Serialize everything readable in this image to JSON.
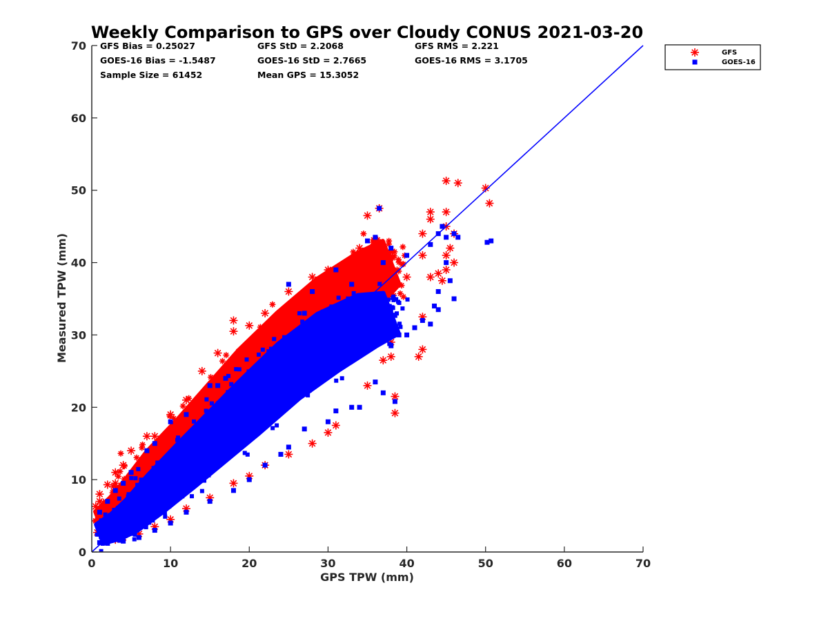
{
  "chart_data": {
    "type": "scatter",
    "title": "Weekly Comparison to GPS over Cloudy CONUS 2021-03-20",
    "xlabel": "GPS TPW (mm)",
    "ylabel": "Measured TPW (mm)",
    "xlim": [
      0,
      70
    ],
    "ylim": [
      0,
      70
    ],
    "xticks": [
      "0",
      "10",
      "20",
      "30",
      "40",
      "50",
      "60",
      "70"
    ],
    "yticks": [
      "0",
      "10",
      "20",
      "30",
      "40",
      "50",
      "60",
      "70"
    ],
    "grid": false,
    "legend_position": "outside top-right",
    "stats": [
      [
        "GFS Bias = 0.25027",
        "GFS StD = 2.2068",
        "GFS RMS = 2.221"
      ],
      [
        "GOES-16 Bias = -1.5487",
        "GOES-16 StD = 2.7665",
        "GOES-16 RMS = 3.1705"
      ],
      [
        "Sample Size = 61452",
        "Mean GPS = 15.3052",
        ""
      ]
    ],
    "reference_line": {
      "type": "one-to-one",
      "color": "#0000ff",
      "x": [
        0,
        70
      ],
      "y": [
        0,
        70
      ]
    },
    "series": [
      {
        "name": "GFS",
        "marker": "asterisk",
        "color": "#ff0000",
        "core": [
          [
            1,
            4
          ],
          [
            3,
            5.5
          ],
          [
            5,
            7.5
          ],
          [
            8,
            11
          ],
          [
            12,
            15
          ],
          [
            16,
            19.5
          ],
          [
            20,
            24
          ],
          [
            25,
            29
          ],
          [
            30,
            33.5
          ],
          [
            35,
            37.5
          ],
          [
            38,
            40
          ]
        ],
        "core_spread": [
          1.6,
          2,
          2.4,
          2.9,
          3.3,
          3.6,
          3.9,
          4.1,
          4.2,
          3.8,
          3.0
        ],
        "points": [
          [
            45,
            51.3
          ],
          [
            46.5,
            51
          ],
          [
            50,
            50.3
          ],
          [
            50.5,
            48.2
          ],
          [
            36.5,
            47.5
          ],
          [
            35,
            46.5
          ],
          [
            43,
            47
          ],
          [
            45,
            47
          ],
          [
            43,
            46
          ],
          [
            42,
            44
          ],
          [
            45,
            45
          ],
          [
            46,
            44
          ],
          [
            45.5,
            42
          ],
          [
            46,
            40
          ],
          [
            45,
            41
          ],
          [
            45,
            39
          ],
          [
            42,
            41
          ],
          [
            43,
            38
          ],
          [
            44,
            38.5
          ],
          [
            44.5,
            37.5
          ],
          [
            40,
            38
          ],
          [
            38,
            39
          ],
          [
            36,
            43
          ],
          [
            34,
            42
          ],
          [
            34,
            40
          ],
          [
            30,
            39
          ],
          [
            28,
            38
          ],
          [
            25,
            36
          ],
          [
            22,
            33
          ],
          [
            20,
            31.3
          ],
          [
            18,
            32
          ],
          [
            18,
            30.5
          ],
          [
            16,
            27.5
          ],
          [
            14,
            25
          ],
          [
            15,
            22
          ],
          [
            14,
            21
          ],
          [
            12,
            21
          ],
          [
            10,
            19
          ],
          [
            8,
            16
          ],
          [
            7,
            16
          ],
          [
            5,
            14
          ],
          [
            4,
            12
          ],
          [
            3,
            11
          ],
          [
            3,
            9.5
          ],
          [
            2,
            9.3
          ],
          [
            1,
            8
          ],
          [
            1,
            7
          ],
          [
            0.5,
            6.3
          ],
          [
            1.5,
            6.8
          ],
          [
            2,
            6.5
          ],
          [
            38.5,
            21.5
          ],
          [
            38.5,
            19.2
          ],
          [
            42,
            32.5
          ],
          [
            42,
            28
          ],
          [
            41.5,
            27
          ],
          [
            38,
            29
          ],
          [
            38,
            27
          ],
          [
            37,
            26.5
          ],
          [
            35,
            23
          ],
          [
            31,
            17.5
          ],
          [
            30,
            16.5
          ],
          [
            28,
            15
          ],
          [
            25,
            13.5
          ],
          [
            22,
            12
          ],
          [
            20,
            10.5
          ],
          [
            18,
            9.5
          ],
          [
            15,
            7.5
          ],
          [
            12,
            6
          ],
          [
            10,
            4.5
          ],
          [
            8,
            3.5
          ],
          [
            6,
            2.5
          ],
          [
            4,
            2
          ],
          [
            3,
            1.7
          ],
          [
            2,
            2.5
          ],
          [
            0.7,
            2.7
          ]
        ]
      },
      {
        "name": "GOES-16",
        "marker": "square",
        "color": "#0000ff",
        "core": [
          [
            1,
            2.5
          ],
          [
            3,
            3.5
          ],
          [
            5,
            5
          ],
          [
            8,
            8
          ],
          [
            12,
            12
          ],
          [
            16,
            16
          ],
          [
            20,
            20
          ],
          [
            25,
            25
          ],
          [
            30,
            29
          ],
          [
            35,
            32
          ],
          [
            38,
            33
          ]
        ],
        "core_spread": [
          1.3,
          1.7,
          2.1,
          2.6,
          3,
          3.3,
          3.6,
          3.8,
          3.9,
          3.5,
          2.8
        ],
        "points": [
          [
            36.5,
            47.5
          ],
          [
            36,
            43.5
          ],
          [
            38,
            42
          ],
          [
            35,
            43
          ],
          [
            37,
            40
          ],
          [
            40,
            41
          ],
          [
            44,
            44
          ],
          [
            45,
            43.5
          ],
          [
            46,
            44
          ],
          [
            44.5,
            45
          ],
          [
            46.5,
            43.5
          ],
          [
            43,
            42.5
          ],
          [
            50.2,
            42.8
          ],
          [
            50.7,
            43
          ],
          [
            45,
            40
          ],
          [
            45.5,
            37.5
          ],
          [
            44,
            36
          ],
          [
            46,
            35
          ],
          [
            43.5,
            34
          ],
          [
            44,
            33.5
          ],
          [
            43,
            31.5
          ],
          [
            42,
            32
          ],
          [
            41,
            31
          ],
          [
            40,
            30
          ],
          [
            39,
            30
          ],
          [
            38,
            28.5
          ],
          [
            38.5,
            20.8
          ],
          [
            37,
            22
          ],
          [
            36,
            23.5
          ],
          [
            34,
            20
          ],
          [
            33,
            20
          ],
          [
            31,
            19.5
          ],
          [
            30,
            18
          ],
          [
            27,
            17
          ],
          [
            25,
            14.5
          ],
          [
            24,
            13.5
          ],
          [
            22,
            12
          ],
          [
            20,
            10
          ],
          [
            18,
            8.5
          ],
          [
            15,
            7
          ],
          [
            12,
            5.5
          ],
          [
            10,
            4
          ],
          [
            8,
            3
          ],
          [
            6,
            2
          ],
          [
            4,
            1.5
          ],
          [
            2,
            1.2
          ],
          [
            1,
            1.3
          ],
          [
            16,
            19
          ],
          [
            17,
            24
          ],
          [
            16,
            23
          ],
          [
            15,
            23
          ],
          [
            12,
            19
          ],
          [
            10,
            18
          ],
          [
            8,
            15
          ],
          [
            7,
            14
          ],
          [
            5,
            11
          ],
          [
            4,
            9.5
          ],
          [
            3,
            8.5
          ],
          [
            2,
            7
          ],
          [
            1,
            5.5
          ],
          [
            27,
            33
          ],
          [
            28,
            36
          ],
          [
            31,
            39
          ],
          [
            33,
            37
          ],
          [
            25,
            37
          ]
        ]
      }
    ]
  }
}
